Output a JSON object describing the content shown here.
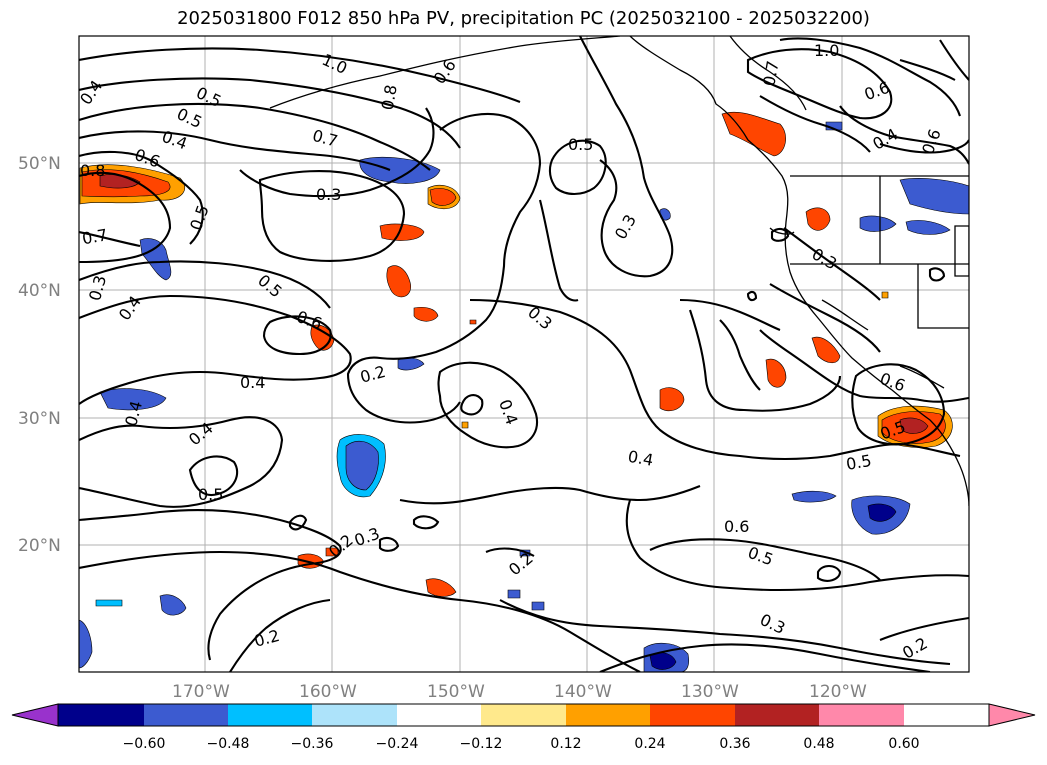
{
  "title": "2025031800 F012 850 hPa PV, precipitation PC (2025032100 - 2025032200)",
  "lat_labels": [
    "50°N",
    "40°N",
    "30°N",
    "20°N"
  ],
  "lon_labels": [
    "170°W",
    "160°W",
    "150°W",
    "140°W",
    "130°W",
    "120°W"
  ],
  "contour_labels": {
    "c0": "0.4",
    "c1": "0.5",
    "c2": "1.0",
    "c3": "0.6",
    "c4": "0.8",
    "c5": "0.7",
    "c6": "0.5",
    "c7": "1.0",
    "c8": "0.6",
    "c9": "0.4",
    "c10": "0.6",
    "c11": "0.4",
    "c12": "0.6",
    "c13": "0.8",
    "c14": "0.7",
    "c15": "0.3",
    "c16": "0.5",
    "c17": "0.5",
    "c18": "0.7",
    "c19": "0.3",
    "c20": "0.4",
    "c21": "0.3",
    "c22": "0.5",
    "c23": "0.6",
    "c24": "0.3",
    "c25": "0.4",
    "c26": "0.2",
    "c27": "0.4",
    "c28": "0.4",
    "c29": "0.4",
    "c30": "0.5",
    "c31": "0.5",
    "c32": "0.3",
    "c33": "0.6",
    "c34": "0.4",
    "c35": "0.5",
    "c36": "0.2",
    "c37": "0.3",
    "c38": "0.2",
    "c39": "0.3",
    "c40": "0.2",
    "c41": "0.2",
    "c42": "0.5",
    "c43": "0.6"
  },
  "colorbar": {
    "ticks": [
      "−0.60",
      "−0.48",
      "−0.36",
      "−0.24",
      "−0.12",
      "0.12",
      "0.24",
      "0.36",
      "0.48",
      "0.60"
    ],
    "colors": [
      "#9932cc",
      "#00008b",
      "#3c5bd0",
      "#00bfff",
      "#ade3fa",
      "#ffffff",
      "#ffe98c",
      "#ffa000",
      "#ff4500",
      "#b22222",
      "#ff88aa"
    ]
  },
  "palette": {
    "neg_light": "#ade3fa",
    "neg_mid": "#00bfff",
    "neg_strong": "#3c5bd0",
    "neg_max": "#00008b",
    "pos_light": "#ffe98c",
    "pos_mid": "#ffa000",
    "pos_strong": "#ff4500",
    "pos_max": "#b22222"
  }
}
